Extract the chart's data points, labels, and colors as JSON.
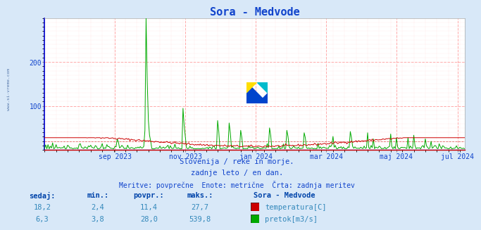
{
  "title": "Sora - Medvode",
  "title_color": "#1144cc",
  "bg_color": "#d8e8f8",
  "plot_bg_color": "#ffffff",
  "watermark_text": "www.si-vreme.com",
  "sidebar_text": "www.si-vreme.com",
  "subtitle_lines": [
    "Slovenija / reke in morje.",
    "zadnje leto / en dan.",
    "Meritve: povprečne  Enote: metrične  Črta: zadnja meritev"
  ],
  "temp_color": "#cc0000",
  "flow_color": "#00aa00",
  "axis_label_color": "#1144cc",
  "ylim": [
    0,
    300
  ],
  "yticks": [
    100,
    200
  ],
  "x_tick_labels": [
    "sep 2023",
    "nov 2023",
    "jan 2024",
    "mar 2024",
    "maj 2024",
    "jul 2024"
  ],
  "x_tick_positions": [
    61,
    122,
    183,
    244,
    305,
    358
  ],
  "n_days": 365,
  "table_headers": [
    "sedaj:",
    "min.:",
    "povpr.:",
    "maks.:"
  ],
  "table_col1": [
    "18,2",
    "6,3"
  ],
  "table_col2": [
    "2,4",
    "3,8"
  ],
  "table_col3": [
    "11,4",
    "28,0"
  ],
  "table_col4": [
    "27,7",
    "539,8"
  ],
  "legend_labels": [
    "temperatura[C]",
    "pretok[m3/s]"
  ],
  "legend_title": "Sora - Medvode",
  "logo_yellow": "#ffdd00",
  "logo_blue": "#0044cc",
  "logo_cyan": "#00bbcc"
}
